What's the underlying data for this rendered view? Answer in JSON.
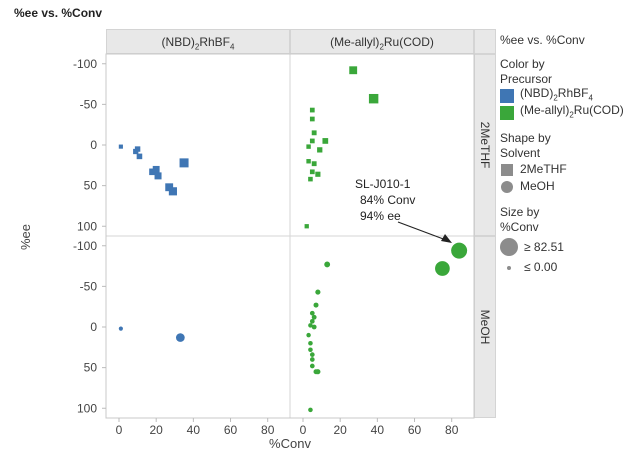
{
  "title": "%ee vs. %Conv",
  "columns": [
    {
      "pre": "(NBD)",
      "sub": "2",
      "post": "RhBF",
      "sub2": "4"
    },
    {
      "pre": "(Me-allyl)",
      "sub": "2",
      "post": "Ru(COD)",
      "sub2": ""
    }
  ],
  "rows": [
    "2MeTHF",
    "MeOH"
  ],
  "legend": {
    "title": "%ee vs. %Conv",
    "color_title": "Color by Precursor",
    "color_items": [
      {
        "pre": "(NBD)",
        "sub": "2",
        "post": "RhBF",
        "sub2": "4",
        "color": "#3f76b4"
      },
      {
        "pre": "(Me-allyl)",
        "sub": "2",
        "post": "Ru(COD)",
        "sub2": "",
        "color": "#3aa73a"
      }
    ],
    "shape_title": "Shape by Solvent",
    "shape_items": [
      "2MeTHF",
      "MeOH"
    ],
    "size_title": "Size by %Conv",
    "size_items": [
      "≥ 82.51",
      "≤ 0.00"
    ]
  },
  "annotation": {
    "lines": [
      "SL-J010-1",
      "84% Conv",
      "94% ee"
    ]
  },
  "chart_data": {
    "type": "scatter",
    "xlabel": "%Conv",
    "ylabel": "%ee",
    "xlim": [
      -7,
      92
    ],
    "ylim": [
      -112,
      112
    ],
    "y_reversed": true,
    "xticks": [
      0,
      20,
      40,
      60,
      80
    ],
    "yticks": [
      -100,
      -50,
      0,
      50,
      100
    ],
    "panels": [
      {
        "column": 0,
        "row": 0,
        "color": "#3f76b4",
        "shape": "square",
        "points": [
          [
            1,
            2
          ],
          [
            9,
            8
          ],
          [
            10,
            5
          ],
          [
            11,
            14
          ],
          [
            18,
            33
          ],
          [
            20,
            30
          ],
          [
            21,
            38
          ],
          [
            27,
            52
          ],
          [
            29,
            57
          ],
          [
            35,
            22
          ]
        ]
      },
      {
        "column": 1,
        "row": 0,
        "color": "#3aa73a",
        "shape": "square",
        "points": [
          [
            27,
            -92
          ],
          [
            38,
            -57
          ],
          [
            5,
            -43
          ],
          [
            5,
            -32
          ],
          [
            6,
            -15
          ],
          [
            5,
            -5
          ],
          [
            3,
            2
          ],
          [
            3,
            20
          ],
          [
            6,
            23
          ],
          [
            5,
            33
          ],
          [
            4,
            42
          ],
          [
            8,
            36
          ],
          [
            12,
            -5
          ],
          [
            9,
            6
          ],
          [
            2,
            100
          ]
        ]
      },
      {
        "column": 0,
        "row": 1,
        "color": "#3f76b4",
        "shape": "circle",
        "points": [
          [
            1,
            2
          ],
          [
            33,
            13
          ]
        ]
      },
      {
        "column": 1,
        "row": 1,
        "color": "#3aa73a",
        "shape": "circle",
        "points": [
          [
            84,
            -94
          ],
          [
            75,
            -72
          ],
          [
            13,
            -77
          ],
          [
            8,
            -43
          ],
          [
            7,
            -27
          ],
          [
            5,
            -17
          ],
          [
            5,
            -7
          ],
          [
            4,
            -2
          ],
          [
            3,
            10
          ],
          [
            4,
            20
          ],
          [
            4,
            28
          ],
          [
            5,
            34
          ],
          [
            5,
            40
          ],
          [
            5,
            48
          ],
          [
            7,
            55
          ],
          [
            8,
            55
          ],
          [
            4,
            102
          ],
          [
            6,
            -12
          ],
          [
            6,
            0
          ]
        ]
      }
    ]
  }
}
